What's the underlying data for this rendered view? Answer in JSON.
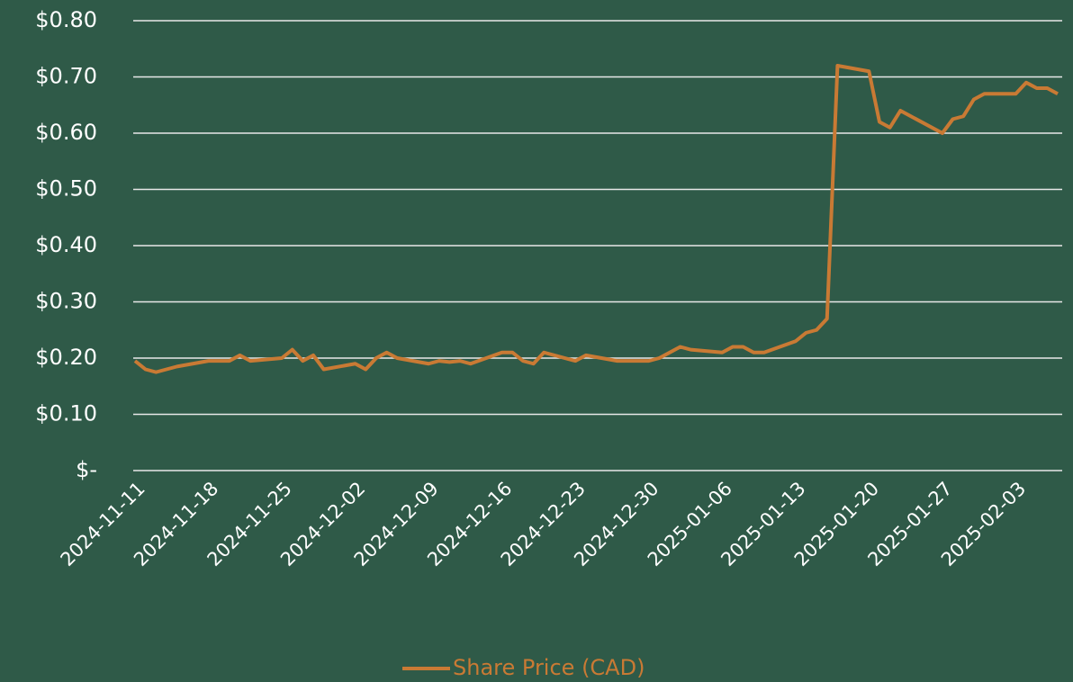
{
  "chart_data": {
    "type": "line",
    "x": [
      "2024-11-11",
      "2024-11-12",
      "2024-11-13",
      "2024-11-15",
      "2024-11-18",
      "2024-11-20",
      "2024-11-21",
      "2024-11-22",
      "2024-11-25",
      "2024-11-26",
      "2024-11-27",
      "2024-11-28",
      "2024-11-29",
      "2024-12-02",
      "2024-12-03",
      "2024-12-04",
      "2024-12-05",
      "2024-12-06",
      "2024-12-09",
      "2024-12-10",
      "2024-12-11",
      "2024-12-12",
      "2024-12-13",
      "2024-12-16",
      "2024-12-17",
      "2024-12-18",
      "2024-12-19",
      "2024-12-20",
      "2024-12-23",
      "2024-12-24",
      "2024-12-27",
      "2024-12-30",
      "2024-12-31",
      "2025-01-02",
      "2025-01-03",
      "2025-01-06",
      "2025-01-07",
      "2025-01-08",
      "2025-01-09",
      "2025-01-10",
      "2025-01-13",
      "2025-01-14",
      "2025-01-15",
      "2025-01-16",
      "2025-01-17",
      "2025-01-20",
      "2025-01-21",
      "2025-01-22",
      "2025-01-23",
      "2025-01-27",
      "2025-01-28",
      "2025-01-29",
      "2025-01-30",
      "2025-01-31",
      "2025-02-03",
      "2025-02-04",
      "2025-02-05",
      "2025-02-06",
      "2025-02-07"
    ],
    "series": [
      {
        "name": "Share Price (CAD)",
        "color": "#c97a34",
        "values": [
          0.195,
          0.18,
          0.175,
          0.185,
          0.195,
          0.195,
          0.205,
          0.195,
          0.2,
          0.215,
          0.195,
          0.205,
          0.18,
          0.19,
          0.18,
          0.2,
          0.21,
          0.2,
          0.19,
          0.195,
          0.193,
          0.195,
          0.19,
          0.21,
          0.21,
          0.195,
          0.19,
          0.21,
          0.195,
          0.205,
          0.195,
          0.195,
          0.2,
          0.22,
          0.215,
          0.21,
          0.22,
          0.22,
          0.21,
          0.21,
          0.23,
          0.245,
          0.25,
          0.27,
          0.72,
          0.71,
          0.62,
          0.61,
          0.64,
          0.6,
          0.625,
          0.63,
          0.66,
          0.67,
          0.67,
          0.69,
          0.68,
          0.68,
          0.67
        ]
      }
    ],
    "xlim": [
      "2024-11-11",
      "2025-02-07"
    ],
    "xticks": [
      "2024-11-11",
      "2024-11-18",
      "2024-11-25",
      "2024-12-02",
      "2024-12-09",
      "2024-12-16",
      "2024-12-23",
      "2024-12-30",
      "2025-01-06",
      "2025-01-13",
      "2025-01-20",
      "2025-01-27",
      "2025-02-03"
    ],
    "ylim": [
      0,
      0.8
    ],
    "yticks": [
      {
        "value": 0,
        "label": "$-"
      },
      {
        "value": 0.1,
        "label": "$0.10"
      },
      {
        "value": 0.2,
        "label": "$0.20"
      },
      {
        "value": 0.3,
        "label": "$0.30"
      },
      {
        "value": 0.4,
        "label": "$0.40"
      },
      {
        "value": 0.5,
        "label": "$0.50"
      },
      {
        "value": 0.6,
        "label": "$0.60"
      },
      {
        "value": 0.7,
        "label": "$0.70"
      },
      {
        "value": 0.8,
        "label": "$0.80"
      }
    ],
    "grid": true,
    "legend": "bottom"
  }
}
